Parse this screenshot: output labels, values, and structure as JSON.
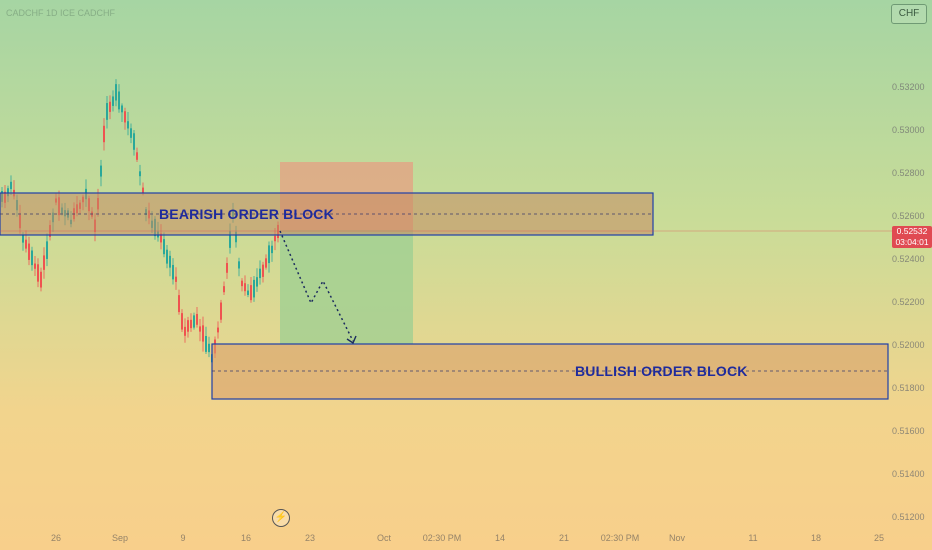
{
  "chart": {
    "title": "CADCHF 1D ICE CADCHF",
    "currency_button": "CHF",
    "current_price": "0.52532",
    "countdown": "03:04:01",
    "price_axis": [
      "0.53200",
      "0.53000",
      "0.52800",
      "0.52600",
      "0.52400",
      "0.52200",
      "0.52000",
      "0.51800",
      "0.51600",
      "0.51400",
      "0.51200"
    ],
    "time_axis": [
      "26",
      "Sep",
      "9",
      "16",
      "23",
      "Oct",
      "02:30 PM",
      "14",
      "21",
      "02:30 PM",
      "Nov",
      "11",
      "18",
      "25"
    ],
    "bearish_label": "BEARISH ORDER BLOCK",
    "bullish_label": "BULLISH ORDER BLOCK",
    "flash_icon": "lightning-icon",
    "colors": {
      "bull_candle": "#2aa89a",
      "bear_candle": "#ef5350",
      "order_block_border": "#1e3fa8",
      "label": "#1f2b9c",
      "current_price": "#e04a52"
    }
  }
}
